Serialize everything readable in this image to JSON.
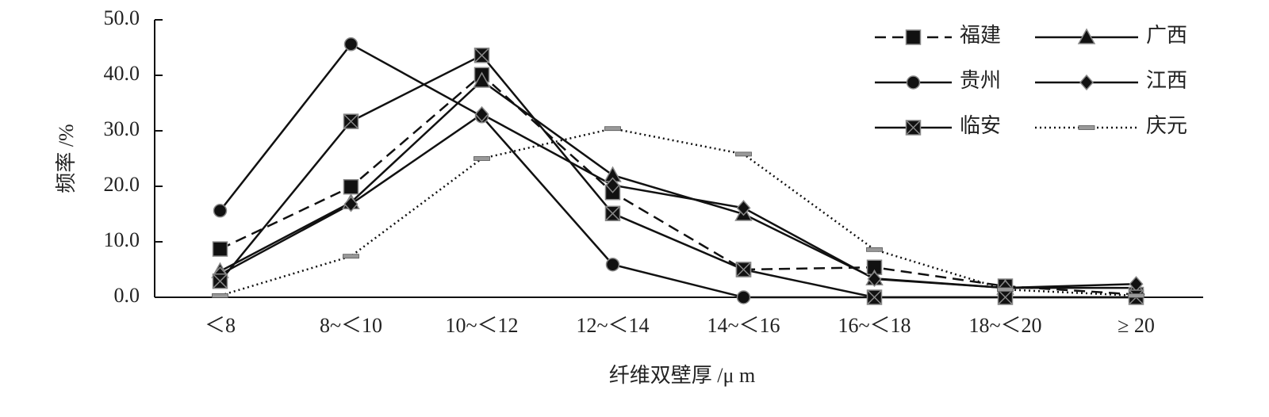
{
  "chart_data": {
    "type": "line",
    "x_label": "纤维双壁厚 /μ m",
    "y_label": "频率 /%",
    "categories": [
      "＜8",
      "8~＜10",
      "10~＜12",
      "12~＜14",
      "14~＜16",
      "16~＜18",
      "18~＜20",
      "≥ 20"
    ],
    "ylim": [
      0,
      50
    ],
    "yticks": [
      {
        "value": 0,
        "label": "0.0"
      },
      {
        "value": 10,
        "label": "10.0"
      },
      {
        "value": 20,
        "label": "20.0"
      },
      {
        "value": 30,
        "label": "30.0"
      },
      {
        "value": 40,
        "label": "40.0"
      },
      {
        "value": 50,
        "label": "50.0"
      }
    ],
    "legend": "top-right",
    "series": [
      {
        "name": "福建",
        "color": "#111111",
        "dash": "dashed",
        "marker": "square",
        "values": [
          8.7,
          19.9,
          40.1,
          18.9,
          5.0,
          5.4,
          2.0,
          0.5
        ]
      },
      {
        "name": "广西",
        "color": "#111111",
        "dash": "solid",
        "marker": "triangle",
        "values": [
          4.7,
          17.1,
          39.0,
          22.0,
          15.0,
          3.4,
          1.7,
          1.7
        ]
      },
      {
        "name": "贵州",
        "color": "#111111",
        "dash": "solid",
        "marker": "circle",
        "values": [
          15.6,
          45.6,
          32.6,
          5.9,
          0,
          0,
          0,
          0
        ]
      },
      {
        "name": "江西",
        "color": "#111111",
        "dash": "solid",
        "marker": "diamond",
        "values": [
          4.1,
          16.8,
          33.0,
          20.2,
          16.1,
          3.3,
          1.7,
          2.4
        ]
      },
      {
        "name": "临安",
        "color": "#111111",
        "dash": "solid",
        "marker": "xsquare",
        "values": [
          2.9,
          31.7,
          43.6,
          15.1,
          5.0,
          0,
          0,
          0
        ]
      },
      {
        "name": "庆元",
        "color": "#111111",
        "dash": "dotted",
        "marker": "dash",
        "values": [
          0.3,
          7.4,
          25.0,
          30.4,
          25.8,
          8.6,
          1.4,
          0.3
        ]
      }
    ]
  }
}
